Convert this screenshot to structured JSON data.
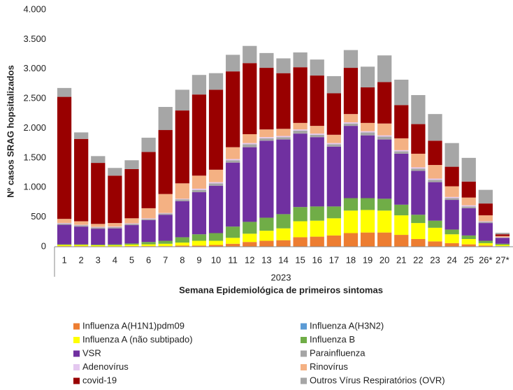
{
  "chart_data": {
    "type": "stacked_bar",
    "y_label": "Nº casos SRAG hopsitalizados",
    "x_label": "Semana Epidemiológica de primeiros sintomas",
    "x_group_label": "2023",
    "categories": [
      "1",
      "2",
      "3",
      "4",
      "5",
      "6",
      "7",
      "8",
      "9",
      "10",
      "11",
      "12",
      "13",
      "14",
      "15",
      "16",
      "17",
      "18",
      "19",
      "20",
      "21",
      "22",
      "23",
      "24",
      "25",
      "26*",
      "27*"
    ],
    "ylim": [
      0,
      4000
    ],
    "yticks": [
      0,
      500,
      {
        "value": 1000,
        "label": "1.000"
      },
      {
        "value": 1500,
        "label": "1.500"
      },
      {
        "value": 2000,
        "label": "2.000"
      },
      {
        "value": 2500,
        "label": "2.500"
      },
      {
        "value": 3000,
        "label": "3.000"
      },
      {
        "value": 3500,
        "label": "3.500"
      },
      {
        "value": 4000,
        "label": "4.000"
      }
    ],
    "series": [
      {
        "name": "Influenza A(H1N1)pdm09",
        "color": "#ed7d31",
        "values": [
          10,
          10,
          5,
          5,
          10,
          10,
          10,
          20,
          20,
          30,
          50,
          80,
          100,
          110,
          160,
          170,
          190,
          230,
          240,
          240,
          200,
          130,
          90,
          60,
          40,
          20,
          5
        ]
      },
      {
        "name": "Influenza A(H3N2)",
        "color": "#5b9bd5",
        "values": [
          0,
          0,
          0,
          0,
          0,
          0,
          0,
          0,
          0,
          0,
          0,
          0,
          0,
          0,
          0,
          0,
          0,
          0,
          0,
          0,
          0,
          0,
          0,
          0,
          0,
          0,
          5
        ]
      },
      {
        "name": "Influenza A (não subtipado)",
        "color": "#ffff00",
        "values": [
          20,
          20,
          20,
          20,
          25,
          30,
          40,
          50,
          80,
          70,
          100,
          140,
          170,
          200,
          270,
          270,
          290,
          380,
          380,
          370,
          330,
          270,
          230,
          150,
          90,
          40,
          20
        ]
      },
      {
        "name": "Influenza B",
        "color": "#70ad47",
        "values": [
          10,
          10,
          10,
          15,
          20,
          40,
          50,
          90,
          110,
          130,
          190,
          200,
          220,
          240,
          240,
          240,
          200,
          210,
          200,
          200,
          180,
          140,
          120,
          80,
          60,
          40,
          20
        ]
      },
      {
        "name": "VSR",
        "color": "#7030a0",
        "values": [
          330,
          300,
          270,
          270,
          310,
          370,
          440,
          610,
          710,
          800,
          1080,
          1260,
          1300,
          1260,
          1240,
          1170,
          1010,
          1220,
          1060,
          1000,
          860,
          740,
          650,
          500,
          460,
          300,
          100
        ]
      },
      {
        "name": "Parainfluenza",
        "color": "#a5a5a5",
        "values": [
          20,
          20,
          20,
          20,
          20,
          20,
          20,
          30,
          40,
          40,
          40,
          50,
          40,
          40,
          50,
          40,
          40,
          40,
          50,
          50,
          40,
          40,
          40,
          30,
          30,
          20,
          5
        ]
      },
      {
        "name": "Adenovírus",
        "color": "#e4c8f0",
        "values": [
          10,
          10,
          10,
          10,
          10,
          10,
          10,
          10,
          20,
          20,
          20,
          20,
          20,
          20,
          20,
          20,
          20,
          20,
          20,
          20,
          20,
          20,
          20,
          20,
          20,
          10,
          5
        ]
      },
      {
        "name": "Rinovírus",
        "color": "#f4b183",
        "values": [
          70,
          60,
          50,
          60,
          85,
          170,
          320,
          260,
          220,
          210,
          200,
          150,
          130,
          120,
          110,
          130,
          140,
          140,
          140,
          200,
          200,
          230,
          230,
          180,
          130,
          100,
          20
        ]
      },
      {
        "name": "covid-19",
        "color": "#990000",
        "values": [
          2060,
          1390,
          1030,
          800,
          830,
          950,
          1080,
          1230,
          1370,
          1350,
          1280,
          1200,
          1040,
          940,
          940,
          850,
          700,
          780,
          600,
          700,
          560,
          500,
          410,
          330,
          270,
          200,
          30
        ]
      },
      {
        "name": "Outros Vírus Respiratórios (OVR)",
        "color": "#a6a6a6",
        "values": [
          150,
          110,
          115,
          130,
          150,
          240,
          390,
          350,
          330,
          280,
          280,
          290,
          250,
          250,
          250,
          270,
          290,
          300,
          350,
          450,
          430,
          490,
          450,
          400,
          400,
          230,
          25
        ]
      }
    ]
  }
}
